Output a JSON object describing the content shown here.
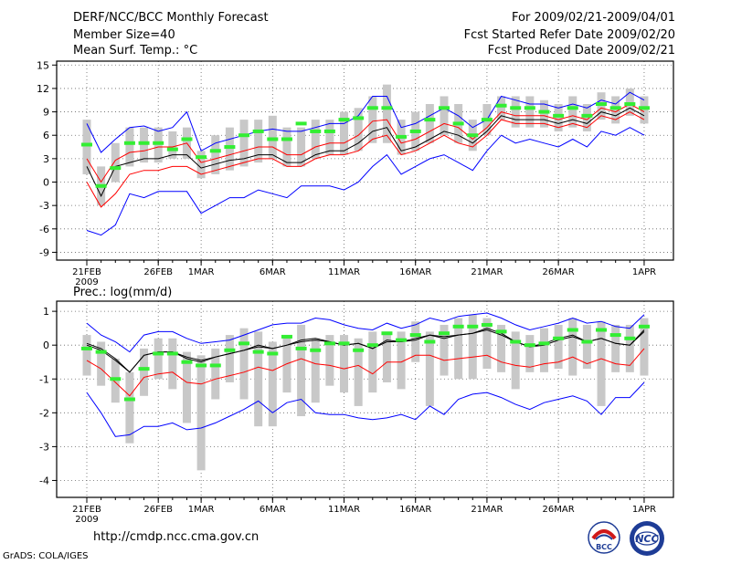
{
  "header": {
    "title": "DERF/NCC/BCC Monthly Forecast",
    "member_size": "Member Size=40",
    "variable": "Mean Surf. Temp.: °C",
    "period": "For 2009/02/21-2009/04/01",
    "started": "Fcst Started Refer Date 2009/02/20",
    "produced": "Fcst Produced Date 2009/02/21"
  },
  "footer": {
    "url": "http://cmdp.ncc.cma.gov.cn",
    "credit": "GrADS: COLA/IGES",
    "logo_left": "BCC",
    "logo_right": "NCC"
  },
  "colors": {
    "blue": "#0000ff",
    "red": "#ff0000",
    "black": "#000000",
    "green": "#33ee33",
    "box": "#c8c8c8",
    "grid": "#666666"
  },
  "chart_data": [
    {
      "type": "line",
      "title": "Mean Surf. Temp.: °C",
      "ylim": [
        -10,
        15.5
      ],
      "yticks": [
        -9,
        -6,
        -3,
        0,
        3,
        6,
        9,
        12,
        15
      ],
      "xticks": [
        {
          "day": 0,
          "label": "21FEB",
          "sub": "2009"
        },
        {
          "day": 5,
          "label": "26FEB"
        },
        {
          "day": 8,
          "label": "1MAR"
        },
        {
          "day": 13,
          "label": "6MAR"
        },
        {
          "day": 18,
          "label": "11MAR"
        },
        {
          "day": 23,
          "label": "16MAR"
        },
        {
          "day": 28,
          "label": "21MAR"
        },
        {
          "day": 33,
          "label": "26MAR"
        },
        {
          "day": 39,
          "label": "1APR"
        }
      ],
      "series": [
        {
          "name": "max",
          "color": "#0000ff",
          "values": [
            7.5,
            3.8,
            5.5,
            7,
            7.2,
            6.5,
            7,
            9,
            4,
            5,
            5.5,
            6,
            6.5,
            6.8,
            6.5,
            6.5,
            7,
            7.5,
            7.5,
            8.5,
            11,
            11,
            7,
            7.5,
            8.5,
            9.5,
            8.5,
            7,
            8,
            11,
            10.5,
            10,
            10,
            9.5,
            10,
            9.5,
            10.5,
            10,
            11.5,
            10.5
          ]
        },
        {
          "name": "upper",
          "color": "#ff0000",
          "values": [
            3,
            0,
            2.8,
            3.8,
            4,
            4.5,
            4.5,
            5,
            2.5,
            3,
            3.5,
            4,
            4.5,
            4.5,
            3.5,
            3.5,
            4.5,
            5,
            5,
            6,
            7.8,
            8,
            5,
            5.5,
            6.5,
            7.5,
            7,
            5.5,
            7,
            9,
            8.5,
            8.5,
            8.5,
            8,
            8.5,
            8,
            9.5,
            9,
            10,
            9
          ]
        },
        {
          "name": "median",
          "color": "#000000",
          "values": [
            2,
            -1.8,
            2,
            2.5,
            3,
            3,
            3.5,
            3.5,
            1.8,
            2.3,
            2.8,
            3,
            3.5,
            3.5,
            2.5,
            2.5,
            3.5,
            4,
            4,
            5,
            6.5,
            7,
            4,
            4.5,
            5.5,
            6.5,
            6,
            5,
            6.5,
            8.5,
            8,
            8,
            8,
            7.5,
            8,
            7.5,
            9,
            8.5,
            9.5,
            8.5
          ]
        },
        {
          "name": "lower",
          "color": "#ff0000",
          "values": [
            0,
            -3.2,
            -1.5,
            1,
            1.5,
            1.5,
            2,
            2,
            1,
            1.5,
            2,
            2.5,
            3,
            3,
            2,
            2,
            3,
            3.5,
            3.5,
            4,
            5.5,
            6,
            3.5,
            4,
            5,
            6,
            5,
            4.5,
            6,
            8,
            7.5,
            7.5,
            7.5,
            7,
            7.5,
            7,
            8.5,
            8,
            9,
            8
          ]
        },
        {
          "name": "min",
          "color": "#0000ff",
          "values": [
            -6.2,
            -6.8,
            -5.5,
            -1.5,
            -2,
            -1.2,
            -1.2,
            -1.2,
            -4,
            -3,
            -2,
            -2,
            -1,
            -1.5,
            -2,
            -0.5,
            -0.5,
            -0.5,
            -1,
            0,
            2,
            3.5,
            1,
            2,
            3,
            3.5,
            2.5,
            1.5,
            4,
            6,
            5,
            5.5,
            5,
            4.5,
            5.5,
            4.5,
            6.5,
            6,
            7,
            6
          ]
        }
      ],
      "member_mean": [
        4.8,
        -0.5,
        1.8,
        5,
        5,
        5,
        4.2,
        5.5,
        3.2,
        4,
        4.5,
        6,
        6.5,
        5.5,
        5.5,
        7.5,
        6.5,
        6.5,
        8,
        8.2,
        9.5,
        9.5,
        5.8,
        6.5,
        8,
        9.5,
        7.5,
        6,
        8,
        9.8,
        9.5,
        9.5,
        9,
        8.5,
        9.5,
        8.5,
        10,
        9.5,
        10,
        9.5
      ],
      "box_range": [
        [
          1,
          8
        ],
        [
          -3,
          2
        ],
        [
          0,
          5
        ],
        [
          2,
          7
        ],
        [
          2.5,
          7
        ],
        [
          2.5,
          7
        ],
        [
          3,
          6.5
        ],
        [
          3,
          7
        ],
        [
          0.5,
          4
        ],
        [
          1,
          6
        ],
        [
          1.5,
          7
        ],
        [
          2,
          8
        ],
        [
          2.5,
          8
        ],
        [
          3,
          8.5
        ],
        [
          2,
          7
        ],
        [
          2,
          7
        ],
        [
          3,
          8
        ],
        [
          3.5,
          8
        ],
        [
          3.5,
          9
        ],
        [
          4,
          9.5
        ],
        [
          5,
          11
        ],
        [
          5,
          12.5
        ],
        [
          3.5,
          8
        ],
        [
          4,
          9
        ],
        [
          5,
          10
        ],
        [
          6,
          11
        ],
        [
          5,
          10
        ],
        [
          4,
          8
        ],
        [
          6,
          10
        ],
        [
          8,
          11
        ],
        [
          7,
          11
        ],
        [
          7,
          11
        ],
        [
          7,
          10.5
        ],
        [
          6.5,
          10
        ],
        [
          7,
          11
        ],
        [
          6.5,
          10
        ],
        [
          8,
          11.5
        ],
        [
          7.5,
          11
        ],
        [
          8.5,
          12
        ],
        [
          7.5,
          11
        ]
      ]
    },
    {
      "type": "line",
      "title": "Prec.: log(mm/d)",
      "ylim": [
        -4.5,
        1.3
      ],
      "yticks": [
        -4,
        -3,
        -2,
        -1,
        0,
        1
      ],
      "xticks": [
        {
          "day": 0,
          "label": "21FEB",
          "sub": "2009"
        },
        {
          "day": 5,
          "label": "26FEB"
        },
        {
          "day": 8,
          "label": "1MAR"
        },
        {
          "day": 13,
          "label": "6MAR"
        },
        {
          "day": 18,
          "label": "11MAR"
        },
        {
          "day": 23,
          "label": "16MAR"
        },
        {
          "day": 28,
          "label": "21MAR"
        },
        {
          "day": 33,
          "label": "26MAR"
        },
        {
          "day": 39,
          "label": "1APR"
        }
      ],
      "series": [
        {
          "name": "max",
          "color": "#0000ff",
          "values": [
            0.65,
            0.3,
            0.1,
            -0.2,
            0.3,
            0.4,
            0.4,
            0.2,
            0.05,
            0.1,
            0.15,
            0.3,
            0.45,
            0.6,
            0.65,
            0.65,
            0.8,
            0.75,
            0.6,
            0.5,
            0.45,
            0.65,
            0.5,
            0.6,
            0.8,
            0.7,
            0.85,
            0.9,
            0.95,
            0.8,
            0.6,
            0.45,
            0.55,
            0.65,
            0.8,
            0.65,
            0.7,
            0.55,
            0.5,
            0.9
          ]
        },
        {
          "name": "upper",
          "color": "#000000",
          "values": [
            0.05,
            -0.1,
            -0.4,
            -0.8,
            -0.3,
            -0.2,
            -0.2,
            -0.35,
            -0.45,
            -0.35,
            -0.25,
            -0.15,
            0,
            -0.1,
            0,
            0.15,
            0.2,
            0.1,
            0,
            0.05,
            -0.1,
            0.15,
            0.1,
            0.2,
            0.3,
            0.25,
            0.3,
            0.35,
            0.5,
            0.35,
            0.1,
            -0.05,
            0.05,
            0.2,
            0.3,
            0.1,
            0.2,
            0.05,
            0,
            0.45
          ]
        },
        {
          "name": "median",
          "color": "#000000",
          "values": [
            0,
            -0.15,
            -0.45,
            -0.8,
            -0.3,
            -0.2,
            -0.2,
            -0.4,
            -0.5,
            -0.35,
            -0.25,
            -0.15,
            -0.05,
            -0.1,
            0,
            0.1,
            0.15,
            0.1,
            0,
            0.05,
            -0.1,
            0.1,
            0.1,
            0.15,
            0.3,
            0.2,
            0.3,
            0.35,
            0.45,
            0.3,
            0.1,
            -0.05,
            0,
            0.15,
            0.25,
            0.1,
            0.2,
            0.05,
            0,
            0.4
          ]
        },
        {
          "name": "lower",
          "color": "#ff0000",
          "values": [
            -0.45,
            -0.7,
            -1.1,
            -1.5,
            -0.95,
            -0.85,
            -0.8,
            -1.1,
            -1.15,
            -1,
            -0.9,
            -0.8,
            -0.65,
            -0.75,
            -0.55,
            -0.4,
            -0.55,
            -0.6,
            -0.7,
            -0.6,
            -0.85,
            -0.5,
            -0.5,
            -0.3,
            -0.3,
            -0.45,
            -0.4,
            -0.35,
            -0.3,
            -0.5,
            -0.6,
            -0.65,
            -0.55,
            -0.5,
            -0.35,
            -0.55,
            -0.4,
            -0.55,
            -0.6,
            -0.1
          ]
        },
        {
          "name": "min",
          "color": "#0000ff",
          "values": [
            -1.4,
            -2,
            -2.7,
            -2.65,
            -2.4,
            -2.4,
            -2.3,
            -2.5,
            -2.45,
            -2.3,
            -2.1,
            -1.9,
            -1.65,
            -2,
            -1.7,
            -1.6,
            -2,
            -2.05,
            -2.05,
            -2.15,
            -2.2,
            -2.15,
            -2.05,
            -2.2,
            -1.8,
            -2.05,
            -1.6,
            -1.45,
            -1.4,
            -1.55,
            -1.75,
            -1.9,
            -1.7,
            -1.6,
            -1.5,
            -1.65,
            -2.05,
            -1.55,
            -1.55,
            -1.1
          ]
        }
      ],
      "member_mean": [
        -0.1,
        -0.2,
        -1,
        -1.6,
        -0.7,
        -0.25,
        -0.25,
        -0.5,
        -0.6,
        -0.6,
        -0.15,
        0.05,
        -0.2,
        -0.25,
        0.25,
        -0.1,
        -0.15,
        0.05,
        0.05,
        -0.15,
        0,
        0.35,
        0.15,
        0.3,
        0.1,
        0.35,
        0.55,
        0.55,
        0.6,
        0.4,
        0.1,
        0,
        0.05,
        0.2,
        0.45,
        0.1,
        0.45,
        0.3,
        0.2,
        0.55
      ],
      "box_range": [
        [
          -0.9,
          0.3
        ],
        [
          -1.2,
          0.1
        ],
        [
          -1.7,
          -0.4
        ],
        [
          -2.9,
          -0.8
        ],
        [
          -1.5,
          -0.1
        ],
        [
          -1,
          0.2
        ],
        [
          -1.3,
          0.2
        ],
        [
          -2.3,
          -0.2
        ],
        [
          -3.7,
          -0.3
        ],
        [
          -1.6,
          -0.1
        ],
        [
          -1.1,
          0.3
        ],
        [
          -1.6,
          0.5
        ],
        [
          -2.4,
          0.4
        ],
        [
          -2.4,
          0.1
        ],
        [
          -1.4,
          0.3
        ],
        [
          -2.1,
          0.6
        ],
        [
          -1.7,
          0.2
        ],
        [
          -1.2,
          0.3
        ],
        [
          -1.4,
          0.3
        ],
        [
          -1.8,
          0.2
        ],
        [
          -1.4,
          0.4
        ],
        [
          -1.1,
          0.4
        ],
        [
          -1.3,
          0.4
        ],
        [
          -0.5,
          0.7
        ],
        [
          -1.8,
          0.4
        ],
        [
          -0.9,
          0.6
        ],
        [
          -1,
          0.8
        ],
        [
          -1,
          0.9
        ],
        [
          -0.7,
          0.8
        ],
        [
          -0.8,
          0.6
        ],
        [
          -1.3,
          0.4
        ],
        [
          -0.8,
          0.3
        ],
        [
          -0.8,
          0.5
        ],
        [
          -0.7,
          0.6
        ],
        [
          -0.9,
          0.8
        ],
        [
          -0.7,
          0.6
        ],
        [
          -1.8,
          0.7
        ],
        [
          -0.8,
          0.6
        ],
        [
          -0.8,
          0.6
        ],
        [
          -0.9,
          0.8
        ]
      ]
    }
  ]
}
